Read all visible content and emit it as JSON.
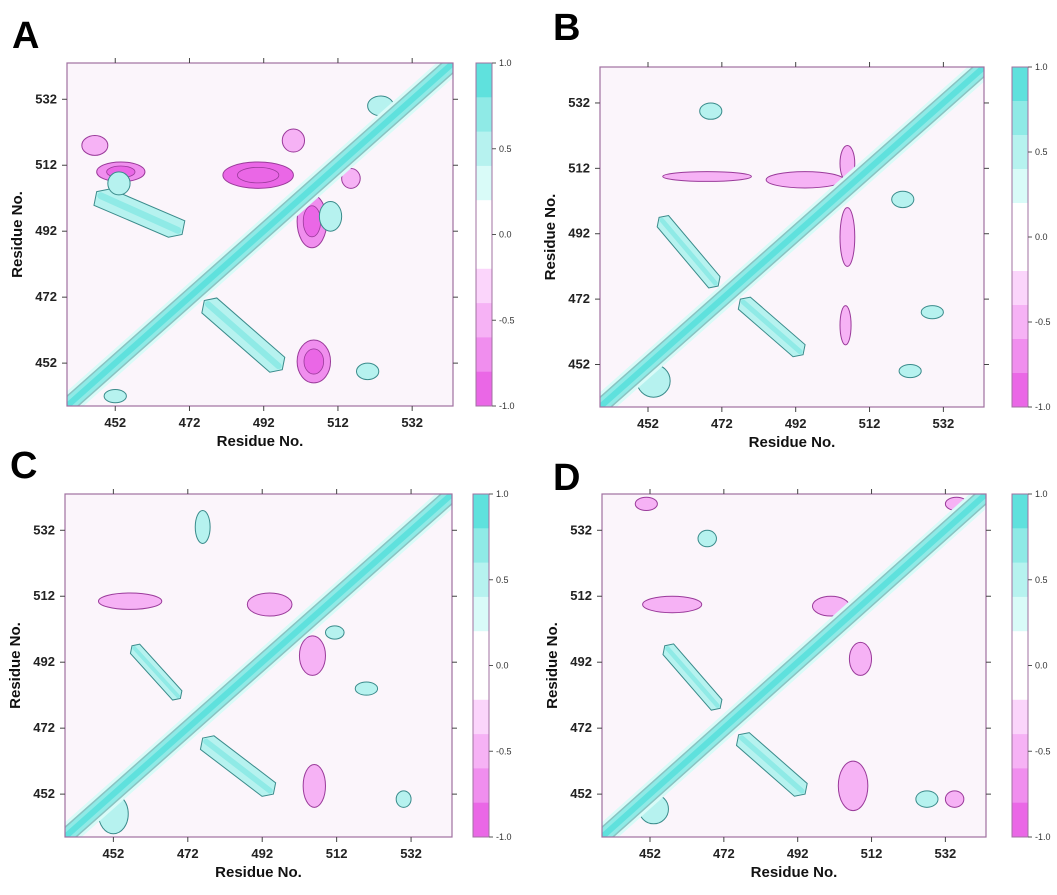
{
  "colors": {
    "background": "#fbf5fb",
    "frame": "#a070a0",
    "positive_scale": [
      "#d9fbf8",
      "#b6f2ef",
      "#8feae6",
      "#5fe1dd"
    ],
    "negative_scale": [
      "#fbd5fb",
      "#f6b2f5",
      "#f08eee",
      "#ea67e6"
    ],
    "contour_line_pos": "#3a8b8b",
    "contour_line_neg": "#9a3a9a"
  },
  "chart_data": [
    {
      "panel": "A",
      "type": "heatmap",
      "xlabel": "Residue No.",
      "ylabel": "Residue No.",
      "x_ticks": [
        452,
        472,
        492,
        512,
        532
      ],
      "y_ticks": [
        452,
        472,
        492,
        512,
        532
      ],
      "range": [
        439,
        543
      ],
      "colorbar": {
        "ticks": [
          "1.0",
          "0.5",
          "0.0",
          "-0.5",
          "-1.0"
        ],
        "range": [
          -1.0,
          1.0
        ]
      },
      "regions": [
        {
          "x": [
            447,
            470
          ],
          "y": [
            491,
            504
          ],
          "value": 0.4,
          "shape": "band-anti"
        },
        {
          "x": [
            476,
            497
          ],
          "y": [
            450,
            471
          ],
          "value": 0.45,
          "shape": "band-anti"
        },
        {
          "x": [
            447,
            460
          ],
          "y": [
            507,
            513
          ],
          "value": -0.75
        },
        {
          "x": [
            481,
            500
          ],
          "y": [
            505,
            513
          ],
          "value": -0.8
        },
        {
          "x": [
            501,
            509
          ],
          "y": [
            487,
            503
          ],
          "value": -0.7
        },
        {
          "x": [
            501,
            510
          ],
          "y": [
            446,
            459
          ],
          "value": -0.6
        },
        {
          "x": [
            497,
            503
          ],
          "y": [
            516,
            523
          ],
          "value": -0.4
        },
        {
          "x": [
            443,
            450
          ],
          "y": [
            515,
            521
          ],
          "value": -0.35
        },
        {
          "x": [
            450,
            456
          ],
          "y": [
            503,
            510
          ],
          "value": 0.3
        },
        {
          "x": [
            520,
            527
          ],
          "y": [
            527,
            533
          ],
          "value": 0.4
        },
        {
          "x": [
            507,
            513
          ],
          "y": [
            492,
            501
          ],
          "value": 0.35
        },
        {
          "x": [
            513,
            518
          ],
          "y": [
            505,
            511
          ],
          "value": -0.35
        },
        {
          "x": [
            449,
            455
          ],
          "y": [
            440,
            444
          ],
          "value": 0.4
        },
        {
          "x": [
            517,
            523
          ],
          "y": [
            447,
            452
          ],
          "value": 0.35
        }
      ]
    },
    {
      "panel": "B",
      "type": "heatmap",
      "xlabel": "Residue No.",
      "ylabel": "Residue No.",
      "x_ticks": [
        452,
        472,
        492,
        512,
        532
      ],
      "y_ticks": [
        452,
        472,
        492,
        512,
        532
      ],
      "range": [
        439,
        543
      ],
      "colorbar": {
        "ticks": [
          "1.0",
          "0.5",
          "0.0",
          "-0.5",
          "-1.0"
        ],
        "range": [
          -1.0,
          1.0
        ]
      },
      "regions": [
        {
          "x": [
            455,
            471
          ],
          "y": [
            476,
            497
          ],
          "value": 0.4,
          "shape": "band-anti"
        },
        {
          "x": [
            477,
            494
          ],
          "y": [
            455,
            472
          ],
          "value": 0.4,
          "shape": "band-anti"
        },
        {
          "x": [
            456,
            480
          ],
          "y": [
            508,
            511
          ],
          "value": -0.45
        },
        {
          "x": [
            484,
            505
          ],
          "y": [
            506,
            511
          ],
          "value": -0.45
        },
        {
          "x": [
            504,
            508
          ],
          "y": [
            482,
            500
          ],
          "value": -0.35
        },
        {
          "x": [
            504,
            507
          ],
          "y": [
            458,
            470
          ],
          "value": -0.35
        },
        {
          "x": [
            504,
            508
          ],
          "y": [
            508,
            519
          ],
          "value": -0.4
        },
        {
          "x": [
            449,
            458
          ],
          "y": [
            442,
            452
          ],
          "value": 0.3
        },
        {
          "x": [
            466,
            472
          ],
          "y": [
            527,
            532
          ],
          "value": 0.35
        },
        {
          "x": [
            518,
            524
          ],
          "y": [
            500,
            505
          ],
          "value": 0.35
        },
        {
          "x": [
            526,
            532
          ],
          "y": [
            466,
            470
          ],
          "value": 0.35
        },
        {
          "x": [
            520,
            526
          ],
          "y": [
            448,
            452
          ],
          "value": 0.3
        }
      ]
    },
    {
      "panel": "C",
      "type": "heatmap",
      "xlabel": "Residue No.",
      "ylabel": "Residue No.",
      "x_ticks": [
        452,
        472,
        492,
        512,
        532
      ],
      "y_ticks": [
        452,
        472,
        492,
        512,
        532
      ],
      "range": [
        439,
        543
      ],
      "colorbar": {
        "ticks": [
          "1.0",
          "0.5",
          "0.0",
          "-0.5",
          "-1.0"
        ],
        "range": [
          -1.0,
          1.0
        ]
      },
      "regions": [
        {
          "x": [
            457,
            470
          ],
          "y": [
            481,
            497
          ],
          "value": 0.4,
          "shape": "band-anti"
        },
        {
          "x": [
            476,
            495
          ],
          "y": [
            452,
            469
          ],
          "value": 0.4,
          "shape": "band-anti"
        },
        {
          "x": [
            448,
            465
          ],
          "y": [
            508,
            513
          ],
          "value": -0.4
        },
        {
          "x": [
            488,
            500
          ],
          "y": [
            506,
            513
          ],
          "value": -0.45
        },
        {
          "x": [
            502,
            509
          ],
          "y": [
            488,
            500
          ],
          "value": -0.4
        },
        {
          "x": [
            503,
            509
          ],
          "y": [
            448,
            461
          ],
          "value": -0.4
        },
        {
          "x": [
            474,
            478
          ],
          "y": [
            528,
            538
          ],
          "value": 0.3
        },
        {
          "x": [
            448,
            456
          ],
          "y": [
            440,
            452
          ],
          "value": 0.3
        },
        {
          "x": [
            517,
            523
          ],
          "y": [
            482,
            486
          ],
          "value": 0.3
        },
        {
          "x": [
            509,
            514
          ],
          "y": [
            499,
            503
          ],
          "value": 0.3
        },
        {
          "x": [
            528,
            532
          ],
          "y": [
            448,
            453
          ],
          "value": 0.3
        }
      ]
    },
    {
      "panel": "D",
      "type": "heatmap",
      "xlabel": "Residue No.",
      "ylabel": "Residue No.",
      "x_ticks": [
        452,
        472,
        492,
        512,
        532
      ],
      "y_ticks": [
        452,
        472,
        492,
        512,
        532
      ],
      "range": [
        439,
        543
      ],
      "colorbar": {
        "ticks": [
          "1.0",
          "0.5",
          "0.0",
          "-0.5",
          "-1.0"
        ],
        "range": [
          -1.0,
          1.0
        ]
      },
      "regions": [
        {
          "x": [
            456,
            471
          ],
          "y": [
            478,
            497
          ],
          "value": 0.4,
          "shape": "band-anti"
        },
        {
          "x": [
            476,
            494
          ],
          "y": [
            452,
            470
          ],
          "value": 0.4,
          "shape": "band-anti"
        },
        {
          "x": [
            450,
            466
          ],
          "y": [
            507,
            512
          ],
          "value": -0.4
        },
        {
          "x": [
            496,
            506
          ],
          "y": [
            506,
            512
          ],
          "value": -0.4
        },
        {
          "x": [
            506,
            512
          ],
          "y": [
            488,
            498
          ],
          "value": -0.35
        },
        {
          "x": [
            503,
            511
          ],
          "y": [
            447,
            462
          ],
          "value": -0.4
        },
        {
          "x": [
            448,
            454
          ],
          "y": [
            538,
            542
          ],
          "value": -0.3
        },
        {
          "x": [
            532,
            538
          ],
          "y": [
            538,
            542
          ],
          "value": -0.3
        },
        {
          "x": [
            532,
            537
          ],
          "y": [
            448,
            453
          ],
          "value": -0.3
        },
        {
          "x": [
            449,
            457
          ],
          "y": [
            443,
            452
          ],
          "value": 0.3
        },
        {
          "x": [
            465,
            470
          ],
          "y": [
            527,
            532
          ],
          "value": 0.3
        },
        {
          "x": [
            524,
            530
          ],
          "y": [
            448,
            453
          ],
          "value": 0.35
        }
      ]
    }
  ]
}
